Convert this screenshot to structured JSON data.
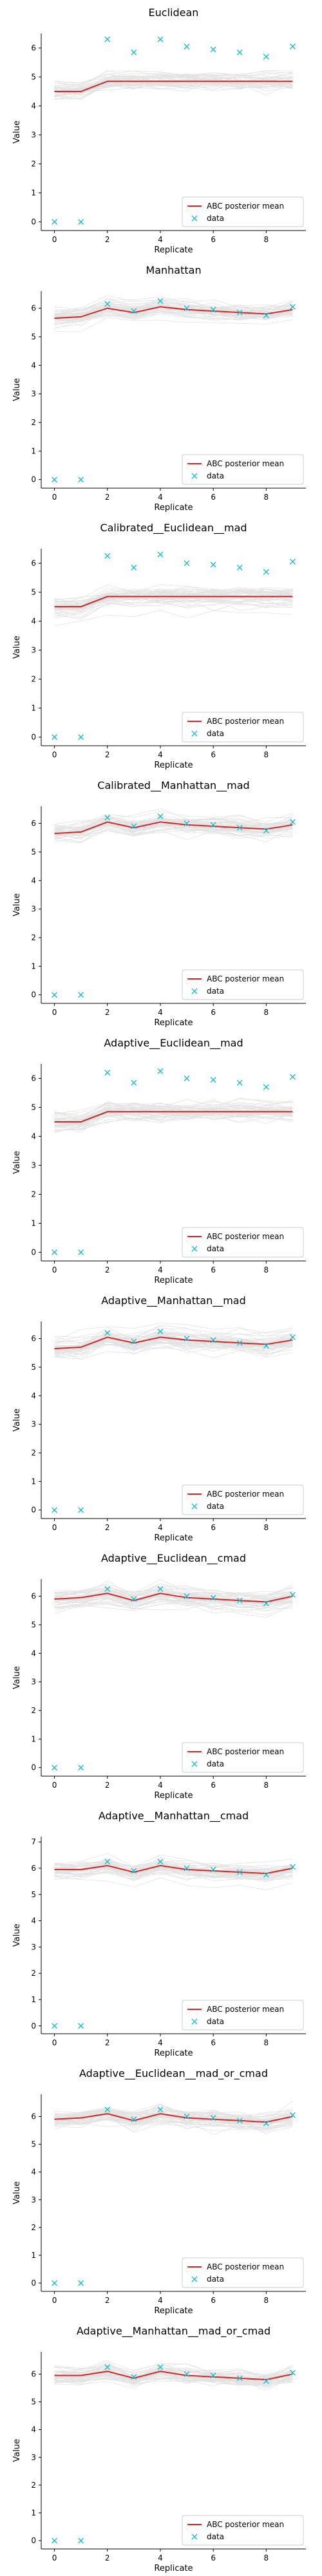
{
  "colors": {
    "posterior_mean": "#d62728",
    "data": "#17becf",
    "samples": "#9a9a9a"
  },
  "chart_data": [
    {
      "type": "line",
      "title": "Euclidean",
      "xlabel": "Replicate",
      "ylabel": "Value",
      "xlim": [
        -0.5,
        9.5
      ],
      "ylim": [
        -0.3,
        6.5
      ],
      "xticks": [
        0,
        2,
        4,
        6,
        8
      ],
      "yticks": [
        0,
        1,
        2,
        3,
        4,
        5,
        6
      ],
      "legend": "lower-right",
      "series": [
        {
          "name": "ABC posterior mean",
          "kind": "line",
          "x": [
            0,
            1,
            2,
            3,
            4,
            5,
            6,
            7,
            8,
            9
          ],
          "values": [
            4.5,
            4.5,
            4.85,
            4.85,
            4.85,
            4.85,
            4.85,
            4.85,
            4.85,
            4.85
          ]
        },
        {
          "name": "data",
          "kind": "scatter",
          "x": [
            0,
            1,
            2,
            3,
            4,
            5,
            6,
            7,
            8,
            9
          ],
          "values": [
            0.0,
            0.0,
            6.3,
            5.85,
            6.3,
            6.05,
            5.95,
            5.85,
            5.7,
            6.05
          ]
        }
      ]
    },
    {
      "type": "line",
      "title": "Manhattan",
      "xlabel": "Replicate",
      "ylabel": "Value",
      "xlim": [
        -0.5,
        9.5
      ],
      "ylim": [
        -0.3,
        6.6
      ],
      "xticks": [
        0,
        2,
        4,
        6,
        8
      ],
      "yticks": [
        0,
        1,
        2,
        3,
        4,
        5,
        6
      ],
      "legend": "lower-right",
      "series": [
        {
          "name": "ABC posterior mean",
          "kind": "line",
          "x": [
            0,
            1,
            2,
            3,
            4,
            5,
            6,
            7,
            8,
            9
          ],
          "values": [
            5.65,
            5.7,
            6.0,
            5.85,
            6.05,
            5.95,
            5.9,
            5.85,
            5.8,
            5.95
          ]
        },
        {
          "name": "data",
          "kind": "scatter",
          "x": [
            0,
            1,
            2,
            3,
            4,
            5,
            6,
            7,
            8,
            9
          ],
          "values": [
            0.0,
            0.0,
            6.15,
            5.9,
            6.25,
            6.0,
            5.95,
            5.85,
            5.75,
            6.05
          ]
        }
      ]
    },
    {
      "type": "line",
      "title": "Calibrated__Euclidean__mad",
      "xlabel": "Replicate",
      "ylabel": "Value",
      "xlim": [
        -0.5,
        9.5
      ],
      "ylim": [
        -0.3,
        6.5
      ],
      "xticks": [
        0,
        2,
        4,
        6,
        8
      ],
      "yticks": [
        0,
        1,
        2,
        3,
        4,
        5,
        6
      ],
      "legend": "lower-right",
      "series": [
        {
          "name": "ABC posterior mean",
          "kind": "line",
          "x": [
            0,
            1,
            2,
            3,
            4,
            5,
            6,
            7,
            8,
            9
          ],
          "values": [
            4.5,
            4.5,
            4.85,
            4.85,
            4.85,
            4.85,
            4.85,
            4.85,
            4.85,
            4.85
          ]
        },
        {
          "name": "data",
          "kind": "scatter",
          "x": [
            0,
            1,
            2,
            3,
            4,
            5,
            6,
            7,
            8,
            9
          ],
          "values": [
            0.0,
            0.0,
            6.25,
            5.85,
            6.3,
            6.0,
            5.95,
            5.85,
            5.7,
            6.05
          ]
        }
      ]
    },
    {
      "type": "line",
      "title": "Calibrated__Manhattan__mad",
      "xlabel": "Replicate",
      "ylabel": "Value",
      "xlim": [
        -0.5,
        9.5
      ],
      "ylim": [
        -0.3,
        6.6
      ],
      "xticks": [
        0,
        2,
        4,
        6,
        8
      ],
      "yticks": [
        0,
        1,
        2,
        3,
        4,
        5,
        6
      ],
      "legend": "lower-right",
      "series": [
        {
          "name": "ABC posterior mean",
          "kind": "line",
          "x": [
            0,
            1,
            2,
            3,
            4,
            5,
            6,
            7,
            8,
            9
          ],
          "values": [
            5.65,
            5.7,
            6.05,
            5.85,
            6.05,
            5.95,
            5.9,
            5.85,
            5.8,
            5.95
          ]
        },
        {
          "name": "data",
          "kind": "scatter",
          "x": [
            0,
            1,
            2,
            3,
            4,
            5,
            6,
            7,
            8,
            9
          ],
          "values": [
            0.0,
            0.0,
            6.2,
            5.9,
            6.25,
            6.0,
            5.95,
            5.85,
            5.75,
            6.05
          ]
        }
      ]
    },
    {
      "type": "line",
      "title": "Adaptive__Euclidean__mad",
      "xlabel": "Replicate",
      "ylabel": "Value",
      "xlim": [
        -0.5,
        9.5
      ],
      "ylim": [
        -0.3,
        6.5
      ],
      "xticks": [
        0,
        2,
        4,
        6,
        8
      ],
      "yticks": [
        0,
        1,
        2,
        3,
        4,
        5,
        6
      ],
      "legend": "lower-right",
      "series": [
        {
          "name": "ABC posterior mean",
          "kind": "line",
          "x": [
            0,
            1,
            2,
            3,
            4,
            5,
            6,
            7,
            8,
            9
          ],
          "values": [
            4.5,
            4.5,
            4.85,
            4.85,
            4.85,
            4.85,
            4.85,
            4.85,
            4.85,
            4.85
          ]
        },
        {
          "name": "data",
          "kind": "scatter",
          "x": [
            0,
            1,
            2,
            3,
            4,
            5,
            6,
            7,
            8,
            9
          ],
          "values": [
            0.0,
            0.0,
            6.2,
            5.85,
            6.25,
            6.0,
            5.95,
            5.85,
            5.7,
            6.05
          ]
        }
      ]
    },
    {
      "type": "line",
      "title": "Adaptive__Manhattan__mad",
      "xlabel": "Replicate",
      "ylabel": "Value",
      "xlim": [
        -0.5,
        9.5
      ],
      "ylim": [
        -0.3,
        6.6
      ],
      "xticks": [
        0,
        2,
        4,
        6,
        8
      ],
      "yticks": [
        0,
        1,
        2,
        3,
        4,
        5,
        6
      ],
      "legend": "lower-right",
      "series": [
        {
          "name": "ABC posterior mean",
          "kind": "line",
          "x": [
            0,
            1,
            2,
            3,
            4,
            5,
            6,
            7,
            8,
            9
          ],
          "values": [
            5.65,
            5.7,
            6.05,
            5.85,
            6.05,
            5.95,
            5.9,
            5.85,
            5.8,
            5.95
          ]
        },
        {
          "name": "data",
          "kind": "scatter",
          "x": [
            0,
            1,
            2,
            3,
            4,
            5,
            6,
            7,
            8,
            9
          ],
          "values": [
            0.0,
            0.0,
            6.2,
            5.9,
            6.25,
            6.0,
            5.95,
            5.85,
            5.75,
            6.05
          ]
        }
      ]
    },
    {
      "type": "line",
      "title": "Adaptive__Euclidean__cmad",
      "xlabel": "Replicate",
      "ylabel": "Value",
      "xlim": [
        -0.5,
        9.5
      ],
      "ylim": [
        -0.3,
        6.6
      ],
      "xticks": [
        0,
        2,
        4,
        6,
        8
      ],
      "yticks": [
        0,
        1,
        2,
        3,
        4,
        5,
        6
      ],
      "legend": "lower-right",
      "series": [
        {
          "name": "ABC posterior mean",
          "kind": "line",
          "x": [
            0,
            1,
            2,
            3,
            4,
            5,
            6,
            7,
            8,
            9
          ],
          "values": [
            5.9,
            5.95,
            6.1,
            5.85,
            6.1,
            5.95,
            5.9,
            5.85,
            5.8,
            6.0
          ]
        },
        {
          "name": "data",
          "kind": "scatter",
          "x": [
            0,
            1,
            2,
            3,
            4,
            5,
            6,
            7,
            8,
            9
          ],
          "values": [
            0.0,
            0.0,
            6.25,
            5.9,
            6.25,
            6.0,
            5.95,
            5.85,
            5.75,
            6.05
          ]
        }
      ]
    },
    {
      "type": "line",
      "title": "Adaptive__Manhattan__cmad",
      "xlabel": "Replicate",
      "ylabel": "Value",
      "xlim": [
        -0.5,
        9.5
      ],
      "ylim": [
        -0.3,
        7.2
      ],
      "xticks": [
        0,
        2,
        4,
        6,
        8
      ],
      "yticks": [
        0,
        1,
        2,
        3,
        4,
        5,
        6,
        7
      ],
      "legend": "lower-right",
      "series": [
        {
          "name": "ABC posterior mean",
          "kind": "line",
          "x": [
            0,
            1,
            2,
            3,
            4,
            5,
            6,
            7,
            8,
            9
          ],
          "values": [
            5.95,
            5.95,
            6.1,
            5.85,
            6.1,
            5.95,
            5.9,
            5.85,
            5.8,
            6.0
          ]
        },
        {
          "name": "data",
          "kind": "scatter",
          "x": [
            0,
            1,
            2,
            3,
            4,
            5,
            6,
            7,
            8,
            9
          ],
          "values": [
            0.0,
            0.0,
            6.25,
            5.9,
            6.25,
            6.0,
            5.95,
            5.85,
            5.75,
            6.05
          ]
        }
      ]
    },
    {
      "type": "line",
      "title": "Adaptive__Euclidean__mad_or_cmad",
      "xlabel": "Replicate",
      "ylabel": "Value",
      "xlim": [
        -0.5,
        9.5
      ],
      "ylim": [
        -0.3,
        6.8
      ],
      "xticks": [
        0,
        2,
        4,
        6,
        8
      ],
      "yticks": [
        0,
        1,
        2,
        3,
        4,
        5,
        6
      ],
      "legend": "lower-right",
      "series": [
        {
          "name": "ABC posterior mean",
          "kind": "line",
          "x": [
            0,
            1,
            2,
            3,
            4,
            5,
            6,
            7,
            8,
            9
          ],
          "values": [
            5.9,
            5.95,
            6.1,
            5.85,
            6.1,
            5.95,
            5.9,
            5.85,
            5.8,
            6.0
          ]
        },
        {
          "name": "data",
          "kind": "scatter",
          "x": [
            0,
            1,
            2,
            3,
            4,
            5,
            6,
            7,
            8,
            9
          ],
          "values": [
            0.0,
            0.0,
            6.25,
            5.9,
            6.25,
            6.0,
            5.95,
            5.85,
            5.75,
            6.05
          ]
        }
      ]
    },
    {
      "type": "line",
      "title": "Adaptive__Manhattan__mad_or_cmad",
      "xlabel": "Replicate",
      "ylabel": "Value",
      "xlim": [
        -0.5,
        9.5
      ],
      "ylim": [
        -0.3,
        6.8
      ],
      "xticks": [
        0,
        2,
        4,
        6,
        8
      ],
      "yticks": [
        0,
        1,
        2,
        3,
        4,
        5,
        6
      ],
      "legend": "lower-right",
      "series": [
        {
          "name": "ABC posterior mean",
          "kind": "line",
          "x": [
            0,
            1,
            2,
            3,
            4,
            5,
            6,
            7,
            8,
            9
          ],
          "values": [
            5.95,
            5.95,
            6.1,
            5.85,
            6.1,
            5.95,
            5.9,
            5.85,
            5.8,
            6.0
          ]
        },
        {
          "name": "data",
          "kind": "scatter",
          "x": [
            0,
            1,
            2,
            3,
            4,
            5,
            6,
            7,
            8,
            9
          ],
          "values": [
            0.0,
            0.0,
            6.25,
            5.9,
            6.25,
            6.0,
            5.95,
            5.85,
            5.75,
            6.05
          ]
        }
      ]
    }
  ]
}
